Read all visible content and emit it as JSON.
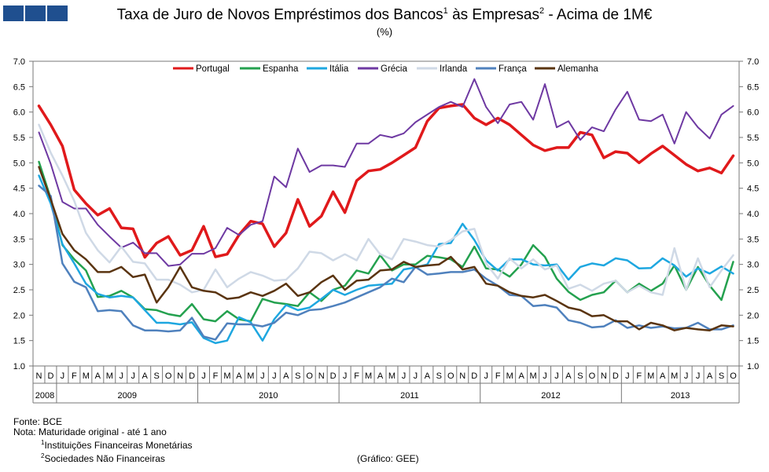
{
  "title": {
    "main": "Taxa de Juro de Novos Empréstimos  dos Bancos",
    "sup1": "1",
    "mid": " às Empresas",
    "sup2": "2",
    "tail": " - Acima de 1M€"
  },
  "subtitle": "(%)",
  "notes": {
    "source": "Fonte: BCE",
    "note": "Nota: Maturidade original - até 1 ano",
    "n1_sup": "1",
    "n1": "Instituições Financeiras Monetárias",
    "n2_sup": "2",
    "n2": "Sociedades Não Financeiras",
    "credit": "(Gráfico: GEE)"
  },
  "chart_data": {
    "type": "line",
    "title": "Taxa de Juro de Novos Empréstimos dos Bancos às Empresas - Acima de 1M€",
    "ylabel": "(%)",
    "ylim": [
      1.0,
      7.0
    ],
    "yticks": [
      "1.0",
      "1.5",
      "2.0",
      "2.5",
      "3.0",
      "3.5",
      "4.0",
      "4.5",
      "5.0",
      "5.5",
      "6.0",
      "6.5",
      "7.0"
    ],
    "grid": false,
    "legend_position": "top",
    "x": [
      "N",
      "D",
      "J",
      "F",
      "M",
      "A",
      "M",
      "J",
      "J",
      "A",
      "S",
      "O",
      "N",
      "D",
      "J",
      "F",
      "M",
      "A",
      "M",
      "J",
      "J",
      "A",
      "S",
      "O",
      "N",
      "D",
      "J",
      "F",
      "M",
      "A",
      "M",
      "J",
      "J",
      "A",
      "S",
      "O",
      "N",
      "D",
      "J",
      "F",
      "M",
      "A",
      "M",
      "J",
      "J",
      "A",
      "S",
      "O",
      "N",
      "D",
      "J",
      "F",
      "M",
      "A",
      "M",
      "J",
      "J",
      "A",
      "S",
      "O"
    ],
    "years": [
      {
        "label": "2008",
        "start": 0,
        "end": 1
      },
      {
        "label": "2009",
        "start": 2,
        "end": 13
      },
      {
        "label": "2010",
        "start": 14,
        "end": 25
      },
      {
        "label": "2011",
        "start": 26,
        "end": 37
      },
      {
        "label": "2012",
        "start": 38,
        "end": 49
      },
      {
        "label": "2013",
        "start": 50,
        "end": 59
      }
    ],
    "series": [
      {
        "name": "Portugal",
        "color": "#e0191b",
        "width": 3.5,
        "values": [
          6.12,
          5.75,
          5.33,
          4.47,
          4.2,
          3.97,
          4.1,
          3.72,
          3.7,
          3.14,
          3.42,
          3.55,
          3.18,
          3.28,
          3.75,
          3.15,
          3.2,
          3.58,
          3.85,
          3.8,
          3.35,
          3.62,
          4.28,
          3.75,
          3.95,
          4.43,
          4.02,
          4.65,
          4.84,
          4.87,
          5.0,
          5.15,
          5.3,
          5.82,
          6.08,
          6.12,
          6.15,
          5.88,
          5.75,
          5.88,
          5.75,
          5.55,
          5.35,
          5.24,
          5.3,
          5.3,
          5.6,
          5.55,
          5.1,
          5.22,
          5.19,
          5.0,
          5.18,
          5.33,
          5.15,
          4.97,
          4.84,
          4.9,
          4.8,
          5.14
        ]
      },
      {
        "name": "Espanha",
        "color": "#24a14f",
        "width": 2.5,
        "values": [
          5.02,
          4.3,
          3.38,
          3.1,
          2.88,
          2.36,
          2.38,
          2.48,
          2.35,
          2.12,
          2.1,
          2.02,
          1.98,
          2.22,
          1.92,
          1.88,
          2.08,
          1.92,
          1.88,
          2.32,
          2.25,
          2.22,
          2.18,
          2.45,
          2.28,
          2.5,
          2.58,
          2.88,
          2.82,
          3.18,
          2.88,
          3.0,
          3.0,
          3.17,
          3.14,
          3.1,
          2.95,
          3.35,
          2.92,
          2.9,
          2.76,
          3.0,
          3.38,
          3.15,
          2.72,
          2.46,
          2.3,
          2.4,
          2.45,
          2.68,
          2.45,
          2.62,
          2.48,
          2.62,
          2.98,
          2.5,
          2.95,
          2.58,
          2.3,
          3.05
        ]
      },
      {
        "name": "Itália",
        "color": "#1ea7e0",
        "width": 2.5,
        "values": [
          4.75,
          4.2,
          3.4,
          3.02,
          2.62,
          2.42,
          2.35,
          2.38,
          2.35,
          2.1,
          1.85,
          1.85,
          1.82,
          1.86,
          1.55,
          1.45,
          1.5,
          1.96,
          1.86,
          1.5,
          1.92,
          2.2,
          2.1,
          2.15,
          2.32,
          2.5,
          2.4,
          2.5,
          2.58,
          2.6,
          2.62,
          2.9,
          2.94,
          3.0,
          3.4,
          3.42,
          3.8,
          3.48,
          3.08,
          2.88,
          3.1,
          3.1,
          3.0,
          2.98,
          3.0,
          2.7,
          2.95,
          3.02,
          2.98,
          3.12,
          3.08,
          2.92,
          2.93,
          3.12,
          2.98,
          2.76,
          2.92,
          2.82,
          2.96,
          2.82
        ]
      },
      {
        "name": "Grécia",
        "color": "#6e39a2",
        "width": 2,
        "values": [
          5.6,
          4.98,
          4.23,
          4.1,
          4.1,
          3.78,
          3.55,
          3.33,
          3.43,
          3.22,
          3.22,
          2.97,
          3.0,
          3.21,
          3.21,
          3.32,
          3.72,
          3.58,
          3.78,
          3.85,
          4.73,
          4.52,
          5.28,
          4.82,
          4.95,
          4.95,
          4.92,
          5.38,
          5.38,
          5.55,
          5.5,
          5.58,
          5.8,
          5.95,
          6.1,
          6.2,
          6.1,
          6.65,
          6.1,
          5.78,
          6.15,
          6.2,
          5.85,
          6.55,
          5.7,
          5.82,
          5.45,
          5.7,
          5.62,
          6.05,
          6.4,
          5.85,
          5.82,
          5.95,
          5.38,
          6.0,
          5.7,
          5.48,
          5.95,
          6.12
        ]
      },
      {
        "name": "Irlanda",
        "color": "#cfd9e6",
        "width": 2.5,
        "values": [
          5.75,
          5.2,
          4.75,
          4.25,
          3.62,
          3.28,
          3.04,
          3.35,
          3.05,
          3.02,
          2.7,
          2.7,
          2.6,
          2.45,
          2.5,
          2.9,
          2.55,
          2.72,
          2.85,
          2.78,
          2.68,
          2.7,
          2.92,
          3.25,
          3.22,
          3.08,
          3.2,
          3.08,
          3.5,
          3.2,
          3.1,
          3.5,
          3.45,
          3.38,
          3.35,
          3.48,
          3.65,
          3.7,
          3.02,
          2.72,
          3.12,
          2.92,
          3.1,
          2.9,
          2.98,
          2.52,
          2.6,
          2.48,
          2.62,
          2.68,
          2.45,
          2.58,
          2.45,
          2.4,
          3.32,
          2.5,
          3.12,
          2.55,
          2.88,
          3.18
        ]
      },
      {
        "name": "França",
        "color": "#4f81bd",
        "width": 2.5,
        "values": [
          4.55,
          4.35,
          3.02,
          2.66,
          2.55,
          2.08,
          2.1,
          2.08,
          1.8,
          1.7,
          1.7,
          1.68,
          1.7,
          1.95,
          1.58,
          1.52,
          1.84,
          1.82,
          1.82,
          1.78,
          1.85,
          2.05,
          2.0,
          2.1,
          2.12,
          2.18,
          2.25,
          2.35,
          2.45,
          2.55,
          2.72,
          2.65,
          2.95,
          2.8,
          2.82,
          2.85,
          2.85,
          2.9,
          2.72,
          2.58,
          2.4,
          2.38,
          2.18,
          2.2,
          2.15,
          1.9,
          1.85,
          1.76,
          1.78,
          1.9,
          1.75,
          1.8,
          1.75,
          1.78,
          1.74,
          1.75,
          1.85,
          1.72,
          1.72,
          1.8
        ]
      },
      {
        "name": "Alemanha",
        "color": "#5a3410",
        "width": 2.5,
        "values": [
          4.92,
          4.28,
          3.6,
          3.28,
          3.1,
          2.85,
          2.85,
          2.95,
          2.75,
          2.8,
          2.25,
          2.55,
          2.95,
          2.55,
          2.48,
          2.45,
          2.32,
          2.35,
          2.45,
          2.38,
          2.48,
          2.62,
          2.38,
          2.45,
          2.65,
          2.78,
          2.5,
          2.68,
          2.7,
          2.88,
          2.9,
          3.05,
          2.95,
          2.98,
          3.0,
          3.15,
          2.9,
          2.95,
          2.62,
          2.58,
          2.45,
          2.38,
          2.35,
          2.4,
          2.28,
          2.15,
          2.1,
          1.98,
          2.0,
          1.88,
          1.88,
          1.72,
          1.85,
          1.8,
          1.7,
          1.75,
          1.72,
          1.7,
          1.8,
          1.78
        ]
      }
    ]
  }
}
